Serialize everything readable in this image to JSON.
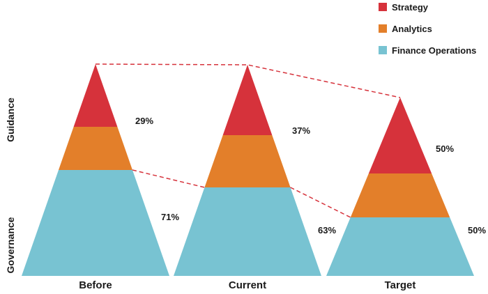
{
  "chart_data": {
    "type": "area",
    "categories": [
      "Before",
      "Current",
      "Target"
    ],
    "series": [
      {
        "name": "Strategy",
        "color": "#d6323b"
      },
      {
        "name": "Analytics",
        "color": "#e37f2a"
      },
      {
        "name": "Finance Operations",
        "color": "#78c3d2"
      }
    ],
    "groups": [
      {
        "name": "Guidance",
        "series": [
          "Strategy",
          "Analytics"
        ]
      },
      {
        "name": "Governance",
        "series": [
          "Finance Operations"
        ]
      }
    ],
    "percent_labels": [
      {
        "category": "Before",
        "guidance": "29%",
        "governance": "71%"
      },
      {
        "category": "Current",
        "guidance": "37%",
        "governance": "63%"
      },
      {
        "category": "Target",
        "guidance": "50%",
        "governance": "50%"
      }
    ],
    "guidance_share": [
      0.29,
      0.37,
      0.5
    ],
    "legend_position": "top-right",
    "connector_color": "#d6323b"
  }
}
